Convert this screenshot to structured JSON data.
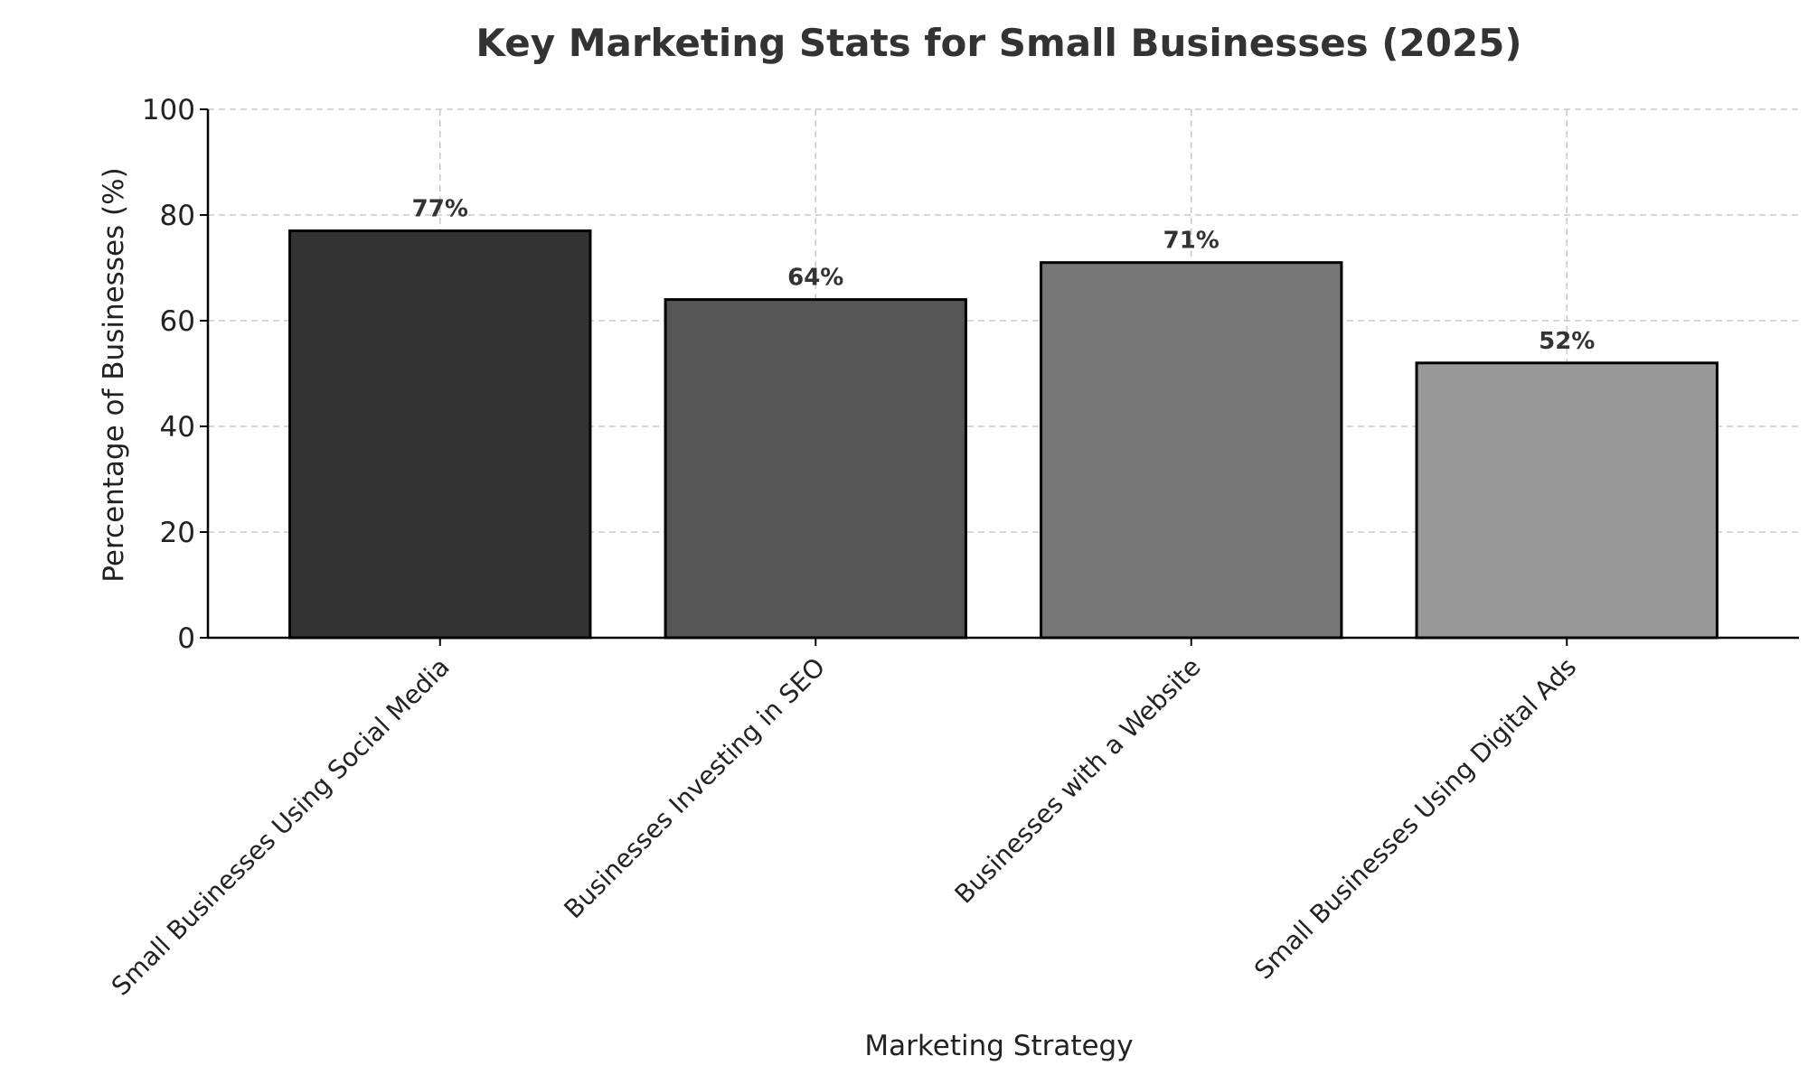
{
  "chart_data": {
    "type": "bar",
    "title": "Key Marketing Stats for Small Businesses (2025)",
    "xlabel": "Marketing Strategy",
    "ylabel": "Percentage of Businesses (%)",
    "categories": [
      "Small Businesses Using Social Media",
      "Businesses Investing in SEO",
      "Businesses with a Website",
      "Small Businesses Using Digital Ads"
    ],
    "values": [
      77,
      64,
      71,
      52
    ],
    "value_labels": [
      "77%",
      "64%",
      "71%",
      "52%"
    ],
    "ylim": [
      0,
      100
    ],
    "yticks": [
      0,
      20,
      40,
      60,
      80,
      100
    ],
    "ytick_labels": [
      "0",
      "20",
      "40",
      "60",
      "80",
      "100"
    ],
    "bar_colors": [
      "#333333",
      "#555555",
      "#777777",
      "#999999"
    ],
    "grid": true,
    "legend": "none"
  }
}
